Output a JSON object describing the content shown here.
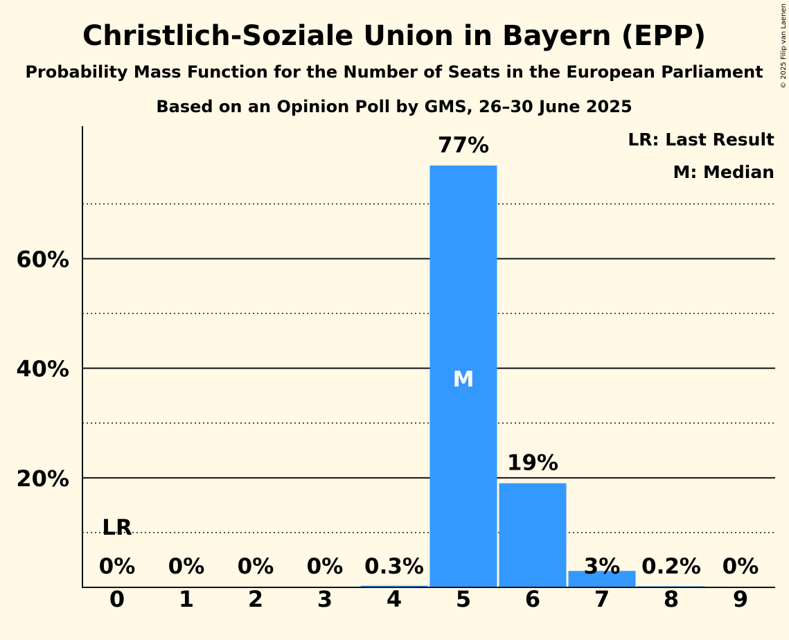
{
  "chart_data": {
    "type": "bar",
    "title": "Christlich-Soziale Union in Bayern (EPP)",
    "subtitle": "Probability Mass Function for the Number of Seats in the European Parliament",
    "subtitle2": "Based on an Opinion Poll by GMS, 26–30 June 2025",
    "copyright": "© 2025 Filip van Laenen",
    "categories": [
      "0",
      "1",
      "2",
      "3",
      "4",
      "5",
      "6",
      "7",
      "8",
      "9"
    ],
    "values": [
      0,
      0,
      0,
      0,
      0.3,
      77,
      19,
      3,
      0.2,
      0
    ],
    "labels": [
      "0%",
      "0%",
      "0%",
      "0%",
      "0.3%",
      "77%",
      "19%",
      "3%",
      "0.2%",
      "0%"
    ],
    "ylim": [
      0,
      84
    ],
    "y_ticks_major": [
      20,
      40,
      60
    ],
    "y_tick_labels": [
      "20%",
      "40%",
      "60%"
    ],
    "y_ticks_minor": [
      10,
      30,
      50,
      70
    ],
    "last_result_seat": 0,
    "median_seat": 5,
    "last_result_marker": "LR",
    "median_marker": "M",
    "legend": [
      "LR: Last Result",
      "M: Median"
    ],
    "bar_color": "#3399ff"
  }
}
